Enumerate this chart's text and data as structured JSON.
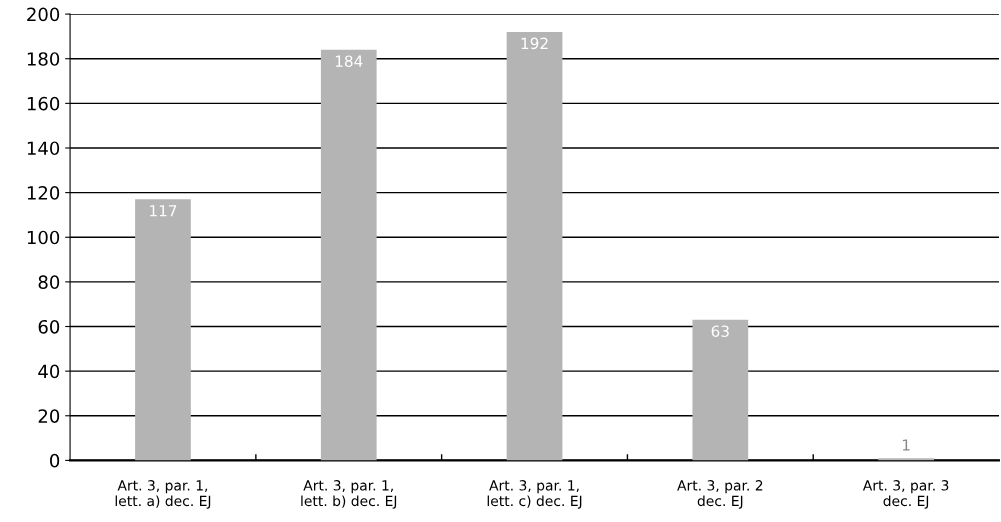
{
  "chart_data": {
    "type": "bar",
    "categories": [
      "Art. 3, par. 1,\nlett. a) dec. EJ",
      "Art. 3, par. 1,\nlett. b) dec. EJ",
      "Art. 3, par. 1,\nlett. c) dec. EJ",
      "Art. 3, par. 2\ndec. EJ",
      "Art. 3, par. 3\ndec. EJ"
    ],
    "values": [
      117,
      184,
      192,
      63,
      1
    ],
    "color": "#b4b4b4",
    "ylim": [
      0,
      200
    ],
    "yticks": [
      0,
      20,
      40,
      60,
      80,
      100,
      120,
      140,
      160,
      180,
      200
    ],
    "grid": "y",
    "data_labels": true,
    "legend": false
  }
}
